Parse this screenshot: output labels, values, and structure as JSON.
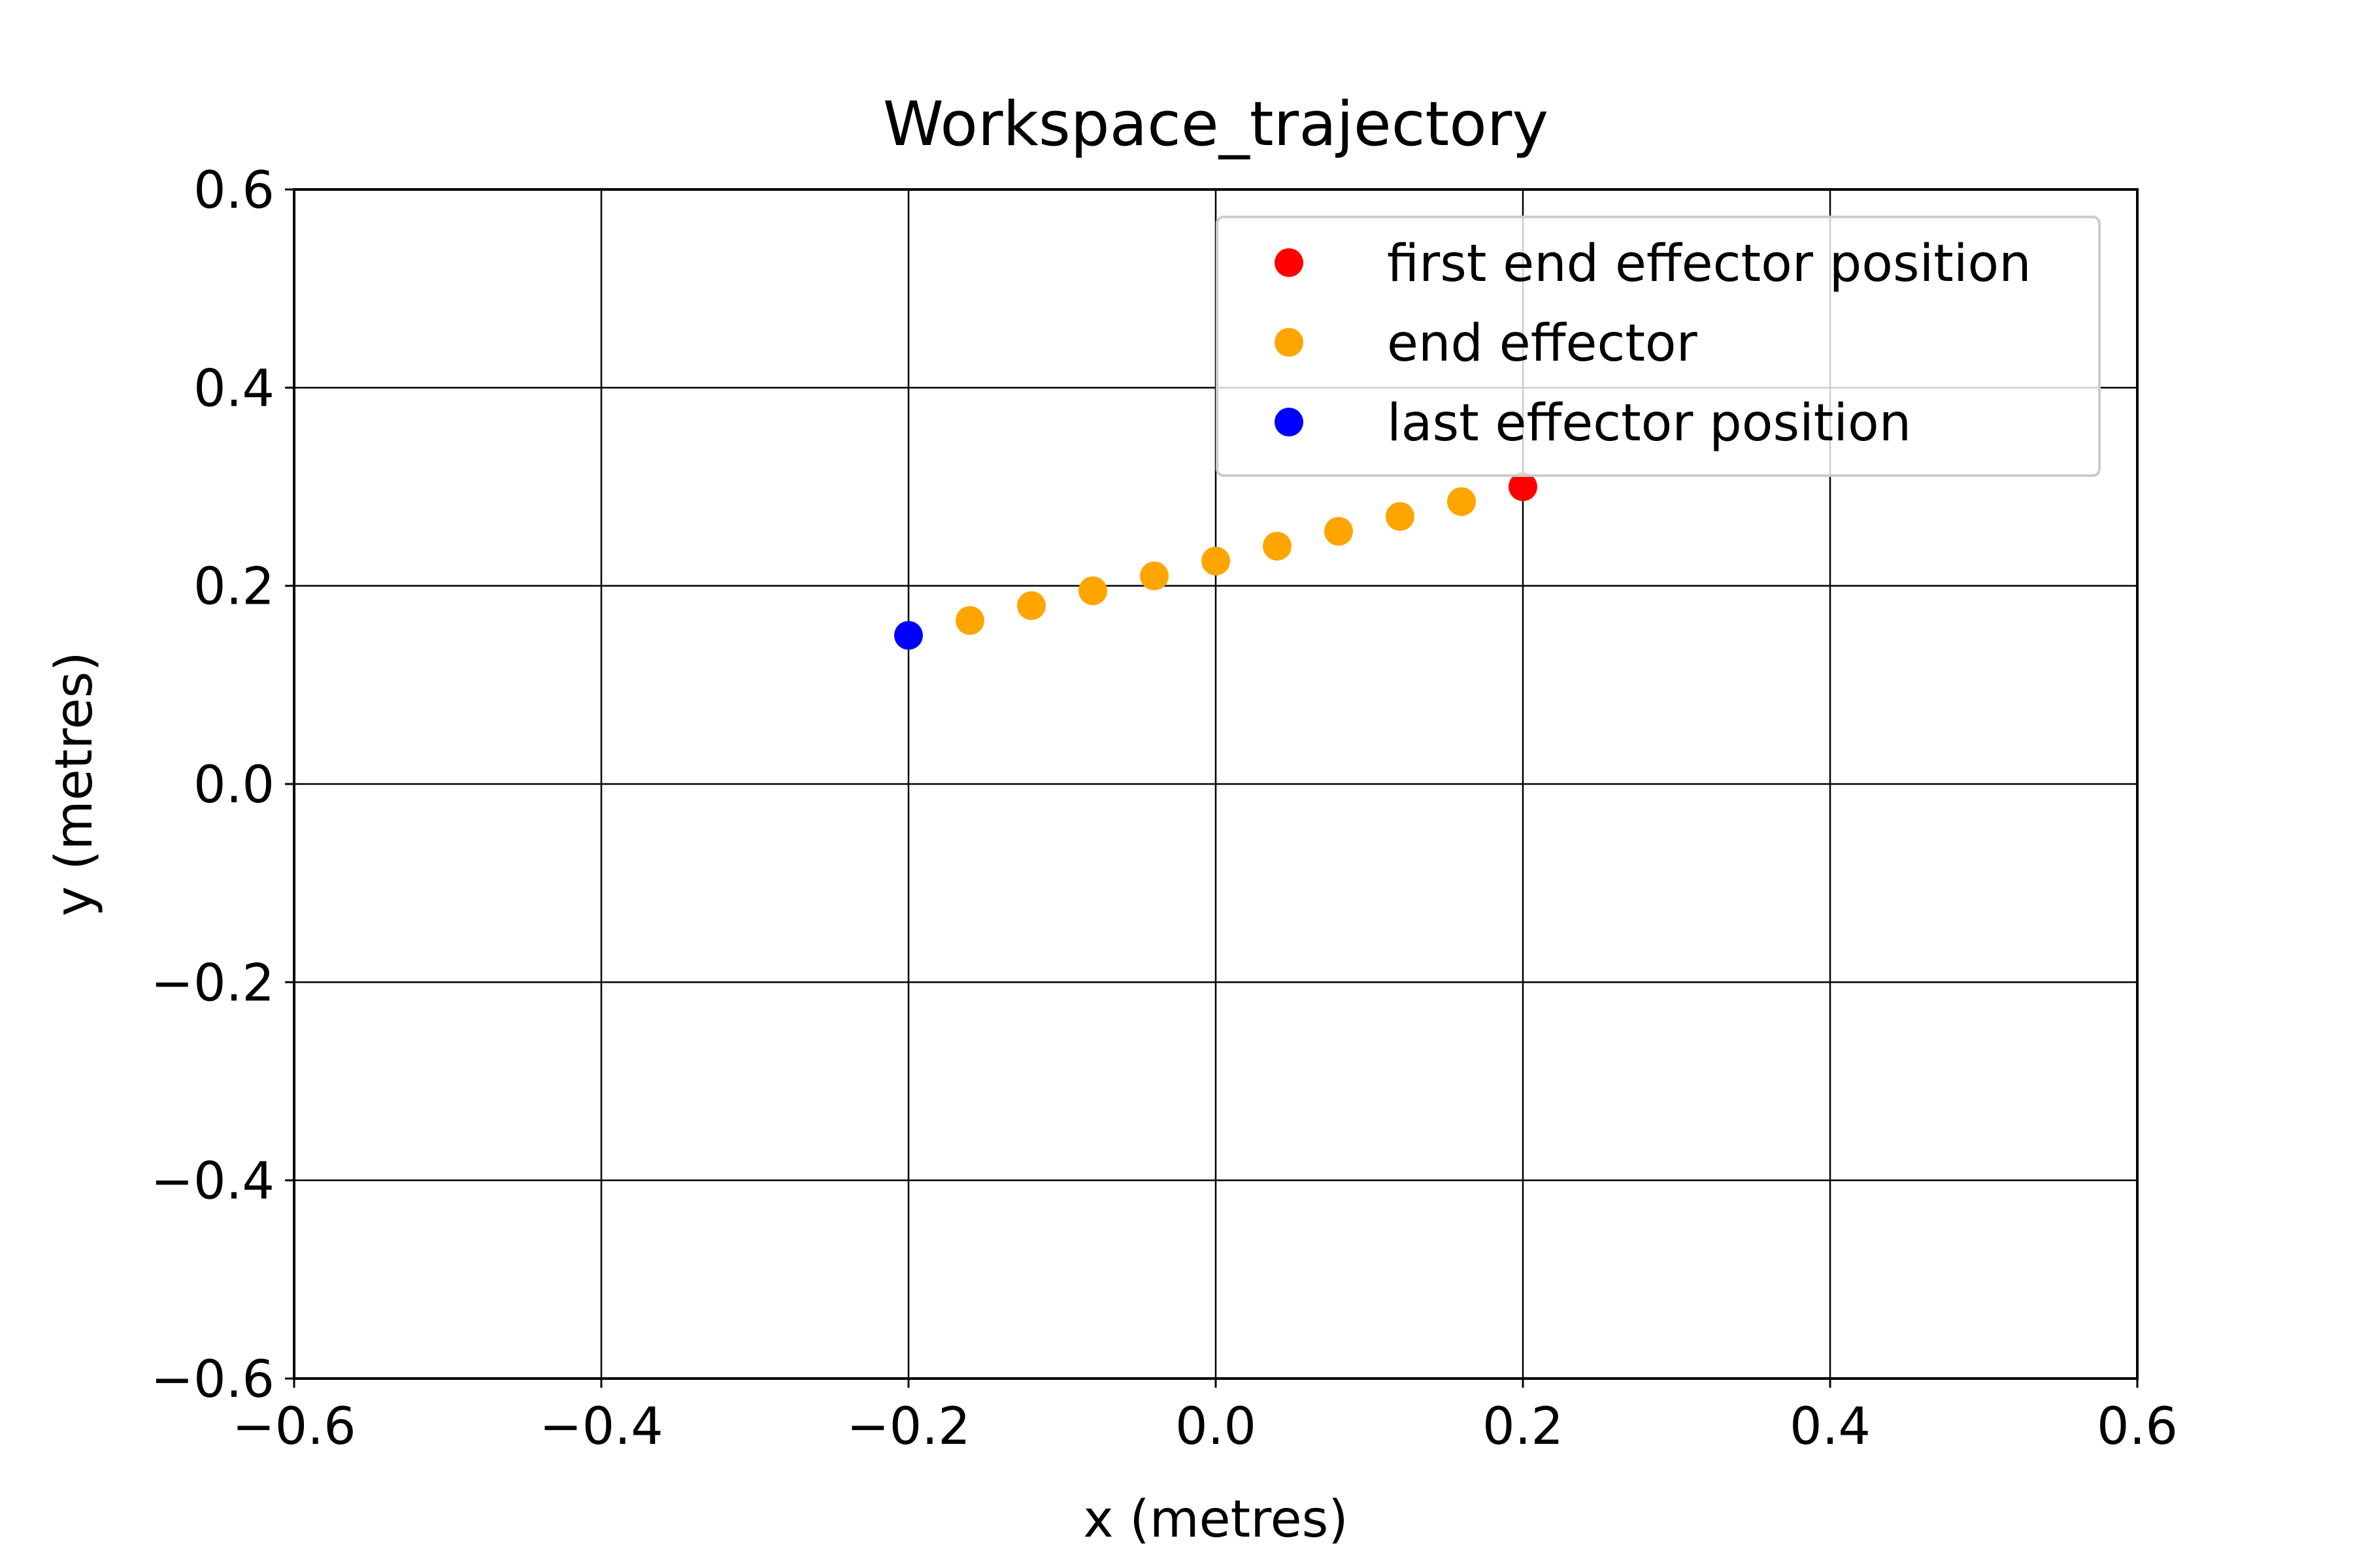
{
  "chart_data": {
    "type": "scatter",
    "title": "Workspace_trajectory",
    "xlabel": "x (metres)",
    "ylabel": "y (metres)",
    "xlim": [
      -0.6,
      0.6
    ],
    "ylim": [
      -0.6,
      0.6
    ],
    "xticks": [
      -0.6,
      -0.4,
      -0.2,
      0.0,
      0.2,
      0.4,
      0.6
    ],
    "yticks": [
      -0.6,
      -0.4,
      -0.2,
      0.0,
      0.2,
      0.4,
      0.6
    ],
    "xtick_labels": [
      "−0.6",
      "−0.4",
      "−0.2",
      "0.0",
      "0.2",
      "0.4",
      "0.6"
    ],
    "ytick_labels": [
      "−0.6",
      "−0.4",
      "−0.2",
      "0.0",
      "0.2",
      "0.4",
      "0.6"
    ],
    "grid": true,
    "legend_position": "top-right",
    "series": [
      {
        "name": "first end effector position",
        "color": "#ff0000",
        "points": [
          [
            0.2,
            0.3
          ]
        ]
      },
      {
        "name": "end effector",
        "color": "#ffa500",
        "points": [
          [
            0.16,
            0.285
          ],
          [
            0.12,
            0.27
          ],
          [
            0.08,
            0.255
          ],
          [
            0.04,
            0.24
          ],
          [
            0.0,
            0.225
          ],
          [
            -0.04,
            0.21
          ],
          [
            -0.08,
            0.195
          ],
          [
            -0.12,
            0.18
          ],
          [
            -0.16,
            0.165
          ]
        ]
      },
      {
        "name": "last effector position",
        "color": "#0000ff",
        "points": [
          [
            -0.2,
            0.15
          ]
        ]
      }
    ]
  }
}
